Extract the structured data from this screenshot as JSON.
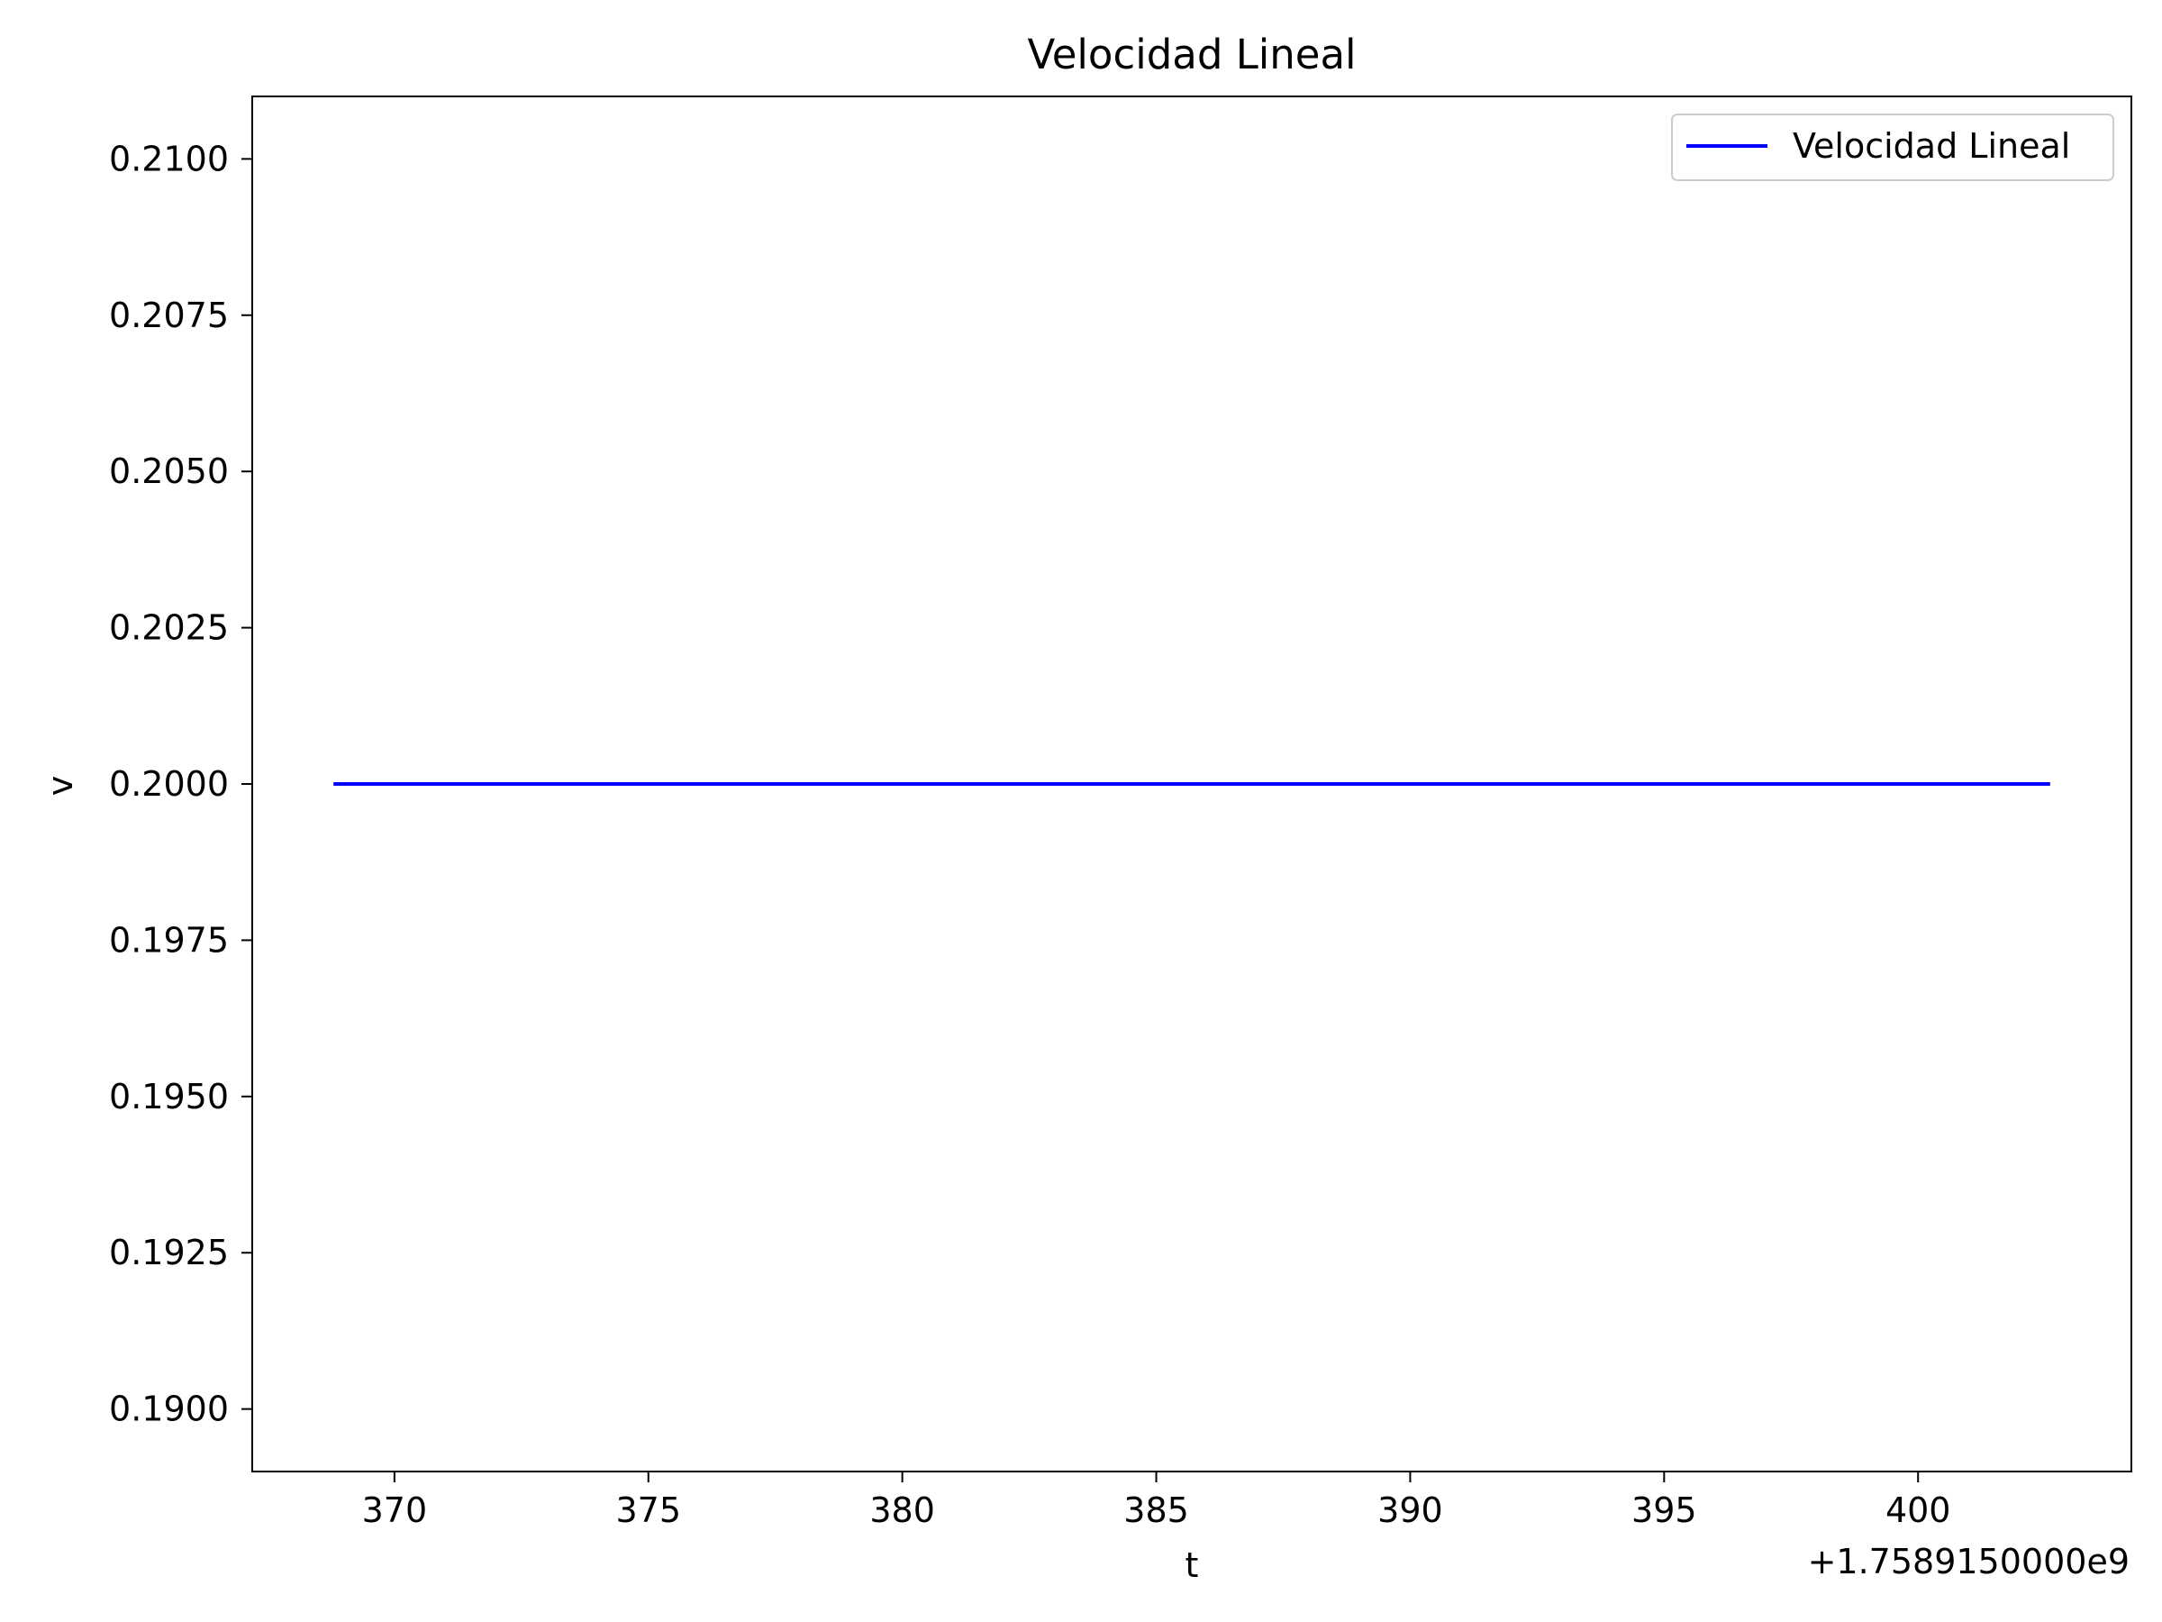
{
  "chart_data": {
    "type": "line",
    "title": "Velocidad Lineal",
    "xlabel": "t",
    "ylabel": "v",
    "x_offset_label": "+1.7589150000e9",
    "xlim": [
      367.2,
      404.2
    ],
    "ylim": [
      0.189,
      0.211
    ],
    "x_ticks": [
      370,
      375,
      380,
      385,
      390,
      395,
      400
    ],
    "y_ticks": [
      0.19,
      0.1925,
      0.195,
      0.1975,
      0.2,
      0.2025,
      0.205,
      0.2075,
      0.21
    ],
    "y_tick_decimals": 4,
    "grid": false,
    "legend_position": "top-right",
    "series": [
      {
        "name": "Velocidad Lineal",
        "color": "#0000ff",
        "x": [
          368.8,
          402.6
        ],
        "y": [
          0.2,
          0.2
        ]
      }
    ]
  }
}
